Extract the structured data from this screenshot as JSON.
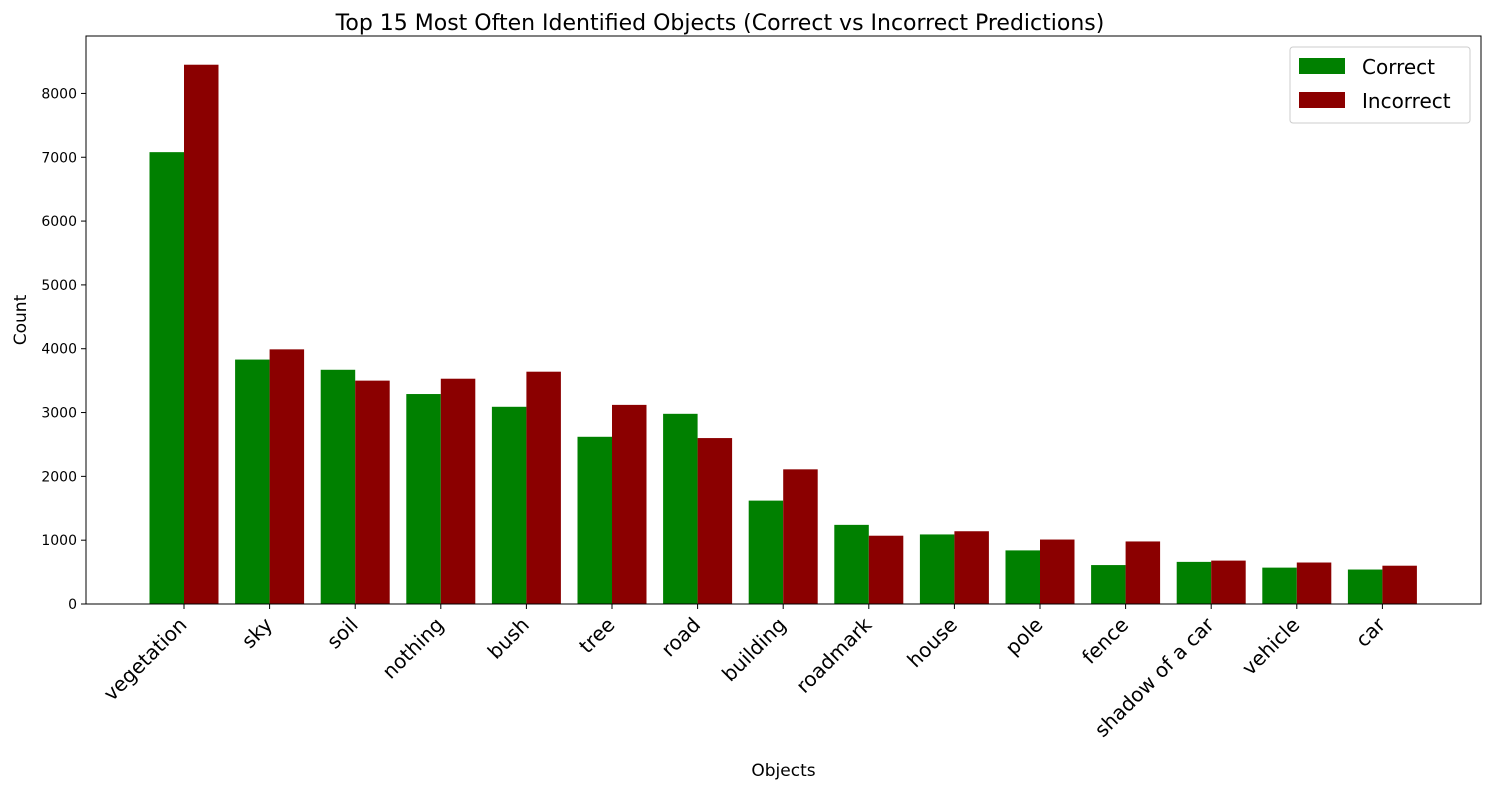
{
  "chart_data": {
    "type": "bar",
    "title": "Top 15 Most Often Identified Objects (Correct vs Incorrect Predictions)",
    "xlabel": "Objects",
    "ylabel": "Count",
    "ylim": [
      0,
      8900
    ],
    "yticks": [
      0,
      1000,
      2000,
      3000,
      4000,
      5000,
      6000,
      7000,
      8000
    ],
    "grid": false,
    "legend_position": "top-right",
    "categories": [
      "vegetation",
      "sky",
      "soil",
      "nothing",
      "bush",
      "tree",
      "road",
      "building",
      "roadmark",
      "house",
      "pole",
      "fence",
      "shadow of a car",
      "vehicle",
      "car"
    ],
    "series": [
      {
        "name": "Correct",
        "color": "#008000",
        "values": [
          7080,
          3830,
          3670,
          3290,
          3090,
          2620,
          2980,
          1620,
          1240,
          1090,
          840,
          610,
          660,
          570,
          540
        ]
      },
      {
        "name": "Incorrect",
        "color": "#8b0000",
        "values": [
          8450,
          3990,
          3500,
          3530,
          3640,
          3120,
          2600,
          2110,
          1070,
          1140,
          1010,
          980,
          680,
          650,
          600
        ]
      }
    ]
  }
}
